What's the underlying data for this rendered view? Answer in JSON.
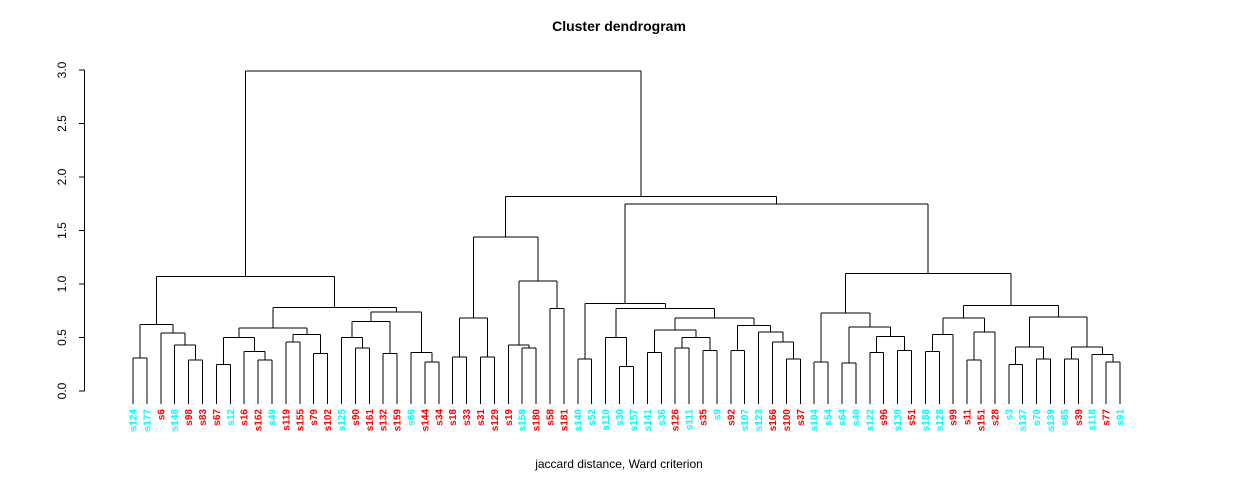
{
  "title": "Cluster dendrogram",
  "xlabel": "jaccard distance, Ward criterion",
  "colors": {
    "red": "#FF0000",
    "cyan": "#00FFFF",
    "line": "#000000",
    "background": "#FFFFFF"
  },
  "chart_data": {
    "type": "dendrogram",
    "title": "Cluster dendrogram",
    "xlabel": "jaccard distance, Ward criterion",
    "ylabel": "",
    "y_axis": {
      "min": 0.0,
      "max": 3.0,
      "tick_labels": [
        "0.0",
        "0.5",
        "1.0",
        "1.5",
        "2.0",
        "2.5",
        "3.0"
      ],
      "tick_values": [
        0.0,
        0.5,
        1.0,
        1.5,
        2.0,
        2.5,
        3.0
      ]
    },
    "grid": false,
    "legend": false,
    "leaves": [
      {
        "label": "s124",
        "color": "cyan"
      },
      {
        "label": "s177",
        "color": "cyan"
      },
      {
        "label": "s6",
        "color": "red"
      },
      {
        "label": "s148",
        "color": "cyan"
      },
      {
        "label": "s98",
        "color": "red"
      },
      {
        "label": "s83",
        "color": "red"
      },
      {
        "label": "s67",
        "color": "red"
      },
      {
        "label": "s12",
        "color": "cyan"
      },
      {
        "label": "s16",
        "color": "red"
      },
      {
        "label": "s162",
        "color": "red"
      },
      {
        "label": "s49",
        "color": "cyan"
      },
      {
        "label": "s119",
        "color": "red"
      },
      {
        "label": "s155",
        "color": "red"
      },
      {
        "label": "s79",
        "color": "red"
      },
      {
        "label": "s102",
        "color": "red"
      },
      {
        "label": "s125",
        "color": "cyan"
      },
      {
        "label": "s90",
        "color": "red"
      },
      {
        "label": "s161",
        "color": "red"
      },
      {
        "label": "s132",
        "color": "red"
      },
      {
        "label": "s159",
        "color": "red"
      },
      {
        "label": "s66",
        "color": "cyan"
      },
      {
        "label": "s144",
        "color": "red"
      },
      {
        "label": "s34",
        "color": "red"
      },
      {
        "label": "s18",
        "color": "red"
      },
      {
        "label": "s33",
        "color": "red"
      },
      {
        "label": "s31",
        "color": "red"
      },
      {
        "label": "s129",
        "color": "red"
      },
      {
        "label": "s19",
        "color": "red"
      },
      {
        "label": "s158",
        "color": "cyan"
      },
      {
        "label": "s180",
        "color": "red"
      },
      {
        "label": "s58",
        "color": "red"
      },
      {
        "label": "s181",
        "color": "red"
      },
      {
        "label": "s140",
        "color": "cyan"
      },
      {
        "label": "s52",
        "color": "cyan"
      },
      {
        "label": "s110",
        "color": "cyan"
      },
      {
        "label": "s30",
        "color": "cyan"
      },
      {
        "label": "s157",
        "color": "cyan"
      },
      {
        "label": "s141",
        "color": "cyan"
      },
      {
        "label": "s36",
        "color": "cyan"
      },
      {
        "label": "s126",
        "color": "red"
      },
      {
        "label": "s111",
        "color": "cyan"
      },
      {
        "label": "s35",
        "color": "red"
      },
      {
        "label": "s9",
        "color": "cyan"
      },
      {
        "label": "s92",
        "color": "red"
      },
      {
        "label": "s107",
        "color": "cyan"
      },
      {
        "label": "s123",
        "color": "cyan"
      },
      {
        "label": "s166",
        "color": "red"
      },
      {
        "label": "s100",
        "color": "red"
      },
      {
        "label": "s37",
        "color": "red"
      },
      {
        "label": "s104",
        "color": "cyan"
      },
      {
        "label": "s54",
        "color": "cyan"
      },
      {
        "label": "s64",
        "color": "cyan"
      },
      {
        "label": "s40",
        "color": "cyan"
      },
      {
        "label": "s122",
        "color": "cyan"
      },
      {
        "label": "s96",
        "color": "red"
      },
      {
        "label": "s130",
        "color": "cyan"
      },
      {
        "label": "s51",
        "color": "red"
      },
      {
        "label": "s188",
        "color": "cyan"
      },
      {
        "label": "s128",
        "color": "cyan"
      },
      {
        "label": "s99",
        "color": "red"
      },
      {
        "label": "s11",
        "color": "red"
      },
      {
        "label": "s151",
        "color": "red"
      },
      {
        "label": "s28",
        "color": "red"
      },
      {
        "label": "s3",
        "color": "cyan"
      },
      {
        "label": "s137",
        "color": "cyan"
      },
      {
        "label": "s70",
        "color": "cyan"
      },
      {
        "label": "s139",
        "color": "cyan"
      },
      {
        "label": "s85",
        "color": "cyan"
      },
      {
        "label": "s39",
        "color": "red"
      },
      {
        "label": "s118",
        "color": "cyan"
      },
      {
        "label": "s77",
        "color": "red"
      },
      {
        "label": "s91",
        "color": "cyan"
      }
    ],
    "tree": [
      2.99,
      [
        1.07,
        [
          0.62,
          [
            0.31,
            "s124",
            "s177"
          ],
          [
            0.54,
            "s6",
            [
              0.43,
              "s148",
              [
                0.29,
                "s98",
                "s83"
              ]
            ]
          ]
        ],
        [
          0.78,
          [
            0.59,
            [
              0.5,
              [
                0.25,
                "s67",
                "s12"
              ],
              [
                0.37,
                "s16",
                [
                  0.29,
                  "s162",
                  "s49"
                ]
              ]
            ],
            [
              0.53,
              [
                0.46,
                "s119",
                "s155"
              ],
              [
                0.35,
                "s79",
                "s102"
              ]
            ]
          ],
          [
            0.74,
            [
              0.65,
              [
                0.5,
                "s125",
                [
                  0.4,
                  "s90",
                  "s161"
                ]
              ],
              [
                0.35,
                "s132",
                "s159"
              ]
            ],
            [
              0.36,
              "s66",
              [
                0.27,
                "s144",
                "s34"
              ]
            ]
          ]
        ]
      ],
      [
        1.82,
        [
          1.44,
          [
            0.68,
            [
              0.32,
              "s18",
              "s33"
            ],
            [
              0.32,
              "s31",
              "s129"
            ]
          ],
          [
            1.03,
            [
              0.43,
              "s19",
              [
                0.4,
                "s158",
                "s180"
              ]
            ],
            [
              0.77,
              "s58",
              "s181"
            ]
          ]
        ],
        [
          1.75,
          [
            0.82,
            [
              0.3,
              "s140",
              "s52"
            ],
            [
              0.77,
              [
                0.5,
                "s110",
                [
                  0.23,
                  "s30",
                  "s157"
                ]
              ],
              [
                0.68,
                [
                  0.57,
                  [
                    0.36,
                    "s141",
                    "s36"
                  ],
                  [
                    0.5,
                    [
                      0.4,
                      "s126",
                      "s111"
                    ],
                    [
                      0.38,
                      "s35",
                      "s9"
                    ]
                  ]
                ],
                [
                  0.61,
                  [
                    0.38,
                    "s92",
                    "s107"
                  ],
                  [
                    0.55,
                    "s123",
                    [
                      0.46,
                      "s166",
                      [
                        0.3,
                        "s100",
                        "s37"
                      ]
                    ]
                  ]
                ]
              ]
            ]
          ],
          [
            1.1,
            [
              0.73,
              [
                0.27,
                "s104",
                "s54"
              ],
              [
                0.6,
                [
                  0.26,
                  "s64",
                  "s40"
                ],
                [
                  0.51,
                  [
                    0.36,
                    "s122",
                    "s96"
                  ],
                  [
                    0.38,
                    "s130",
                    "s51"
                  ]
                ]
              ]
            ],
            [
              0.8,
              [
                0.68,
                [
                  0.53,
                  [
                    0.37,
                    "s188",
                    "s128"
                  ],
                  "s99"
                ],
                [
                  0.55,
                  [
                    0.29,
                    "s11",
                    "s151"
                  ],
                  "s28"
                ]
              ],
              [
                0.69,
                [
                  0.41,
                  [
                    0.25,
                    "s3",
                    "s137"
                  ],
                  [
                    0.3,
                    "s70",
                    "s139"
                  ]
                ],
                [
                  0.41,
                  [
                    0.3,
                    "s85",
                    "s39"
                  ],
                  [
                    0.34,
                    "s118",
                    [
                      0.27,
                      "s77",
                      "s91"
                    ]
                  ]
                ]
              ]
            ]
          ]
        ]
      ]
    ]
  }
}
